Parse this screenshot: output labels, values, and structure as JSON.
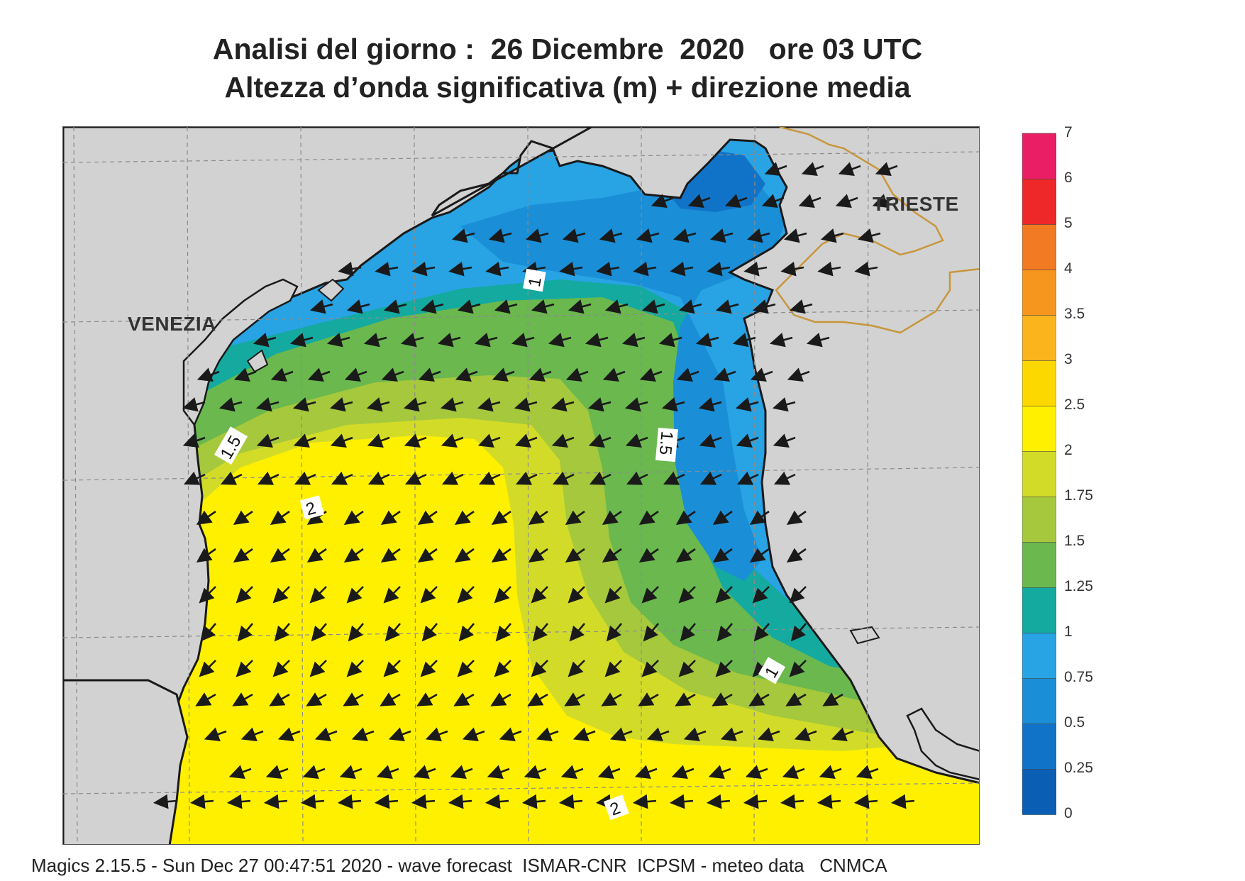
{
  "title": {
    "line1": "Analisi del giorno :  26 Dicembre  2020   ore 03 UTC",
    "line2": "Altezza d’onda significativa (m) + direzione media"
  },
  "map": {
    "city_labels": [
      "VENEZIA",
      "TRIESTE"
    ],
    "contour_labels": [
      "1",
      "1.5",
      "2",
      "1.5",
      "1",
      "2"
    ],
    "land_color": "#d2d2d2",
    "border_color": "#c8963c",
    "arrow_color": "#1a1a1a",
    "mean_wave_direction": "toward south-west"
  },
  "legend": {
    "levels": [
      "0",
      "0.25",
      "0.5",
      "0.75",
      "1",
      "1.25",
      "1.5",
      "1.75",
      "2",
      "2.5",
      "3",
      "3.5",
      "4",
      "5",
      "6",
      "7"
    ],
    "colors": [
      "#0a5fb4",
      "#1173c8",
      "#1a8ed6",
      "#28a3e4",
      "#14aaa0",
      "#6ab84e",
      "#a6c83c",
      "#d2dc28",
      "#fff000",
      "#fcd800",
      "#fbb41c",
      "#f7961e",
      "#f27a22",
      "#ee2828",
      "#ea1e64"
    ]
  },
  "footer": "Magics 2.15.5 - Sun Dec 27 00:47:51 2020 - wave forecast  ISMAR-CNR  ICPSM - meteo data   CNMCA"
}
